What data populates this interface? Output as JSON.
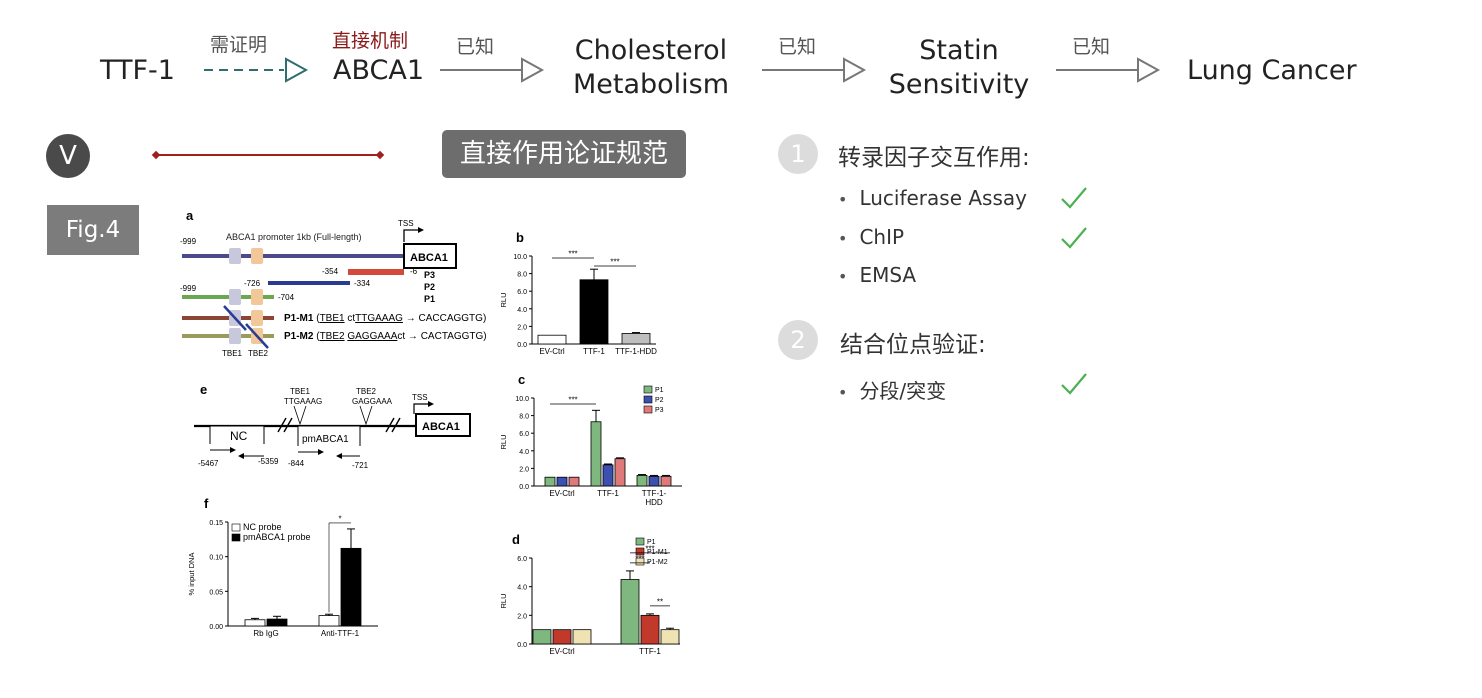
{
  "flow": {
    "nodes": {
      "ttf1": "TTF-1",
      "abca1": "ABCA1",
      "chol_l1": "Cholesterol",
      "chol_l2": "Metabolism",
      "statin_l1": "Statin",
      "statin_l2": "Sensitivity",
      "lung": "Lung Cancer"
    },
    "labels": {
      "to_prove": "需证明",
      "direct_mech": "直接机制",
      "known1": "已知",
      "known2": "已知",
      "known3": "已知"
    }
  },
  "section": {
    "roman": "V",
    "title": "直接作用论证规范",
    "fig_label": "Fig.4"
  },
  "checklist": {
    "group1": {
      "num": "1",
      "heading": "转录因子交互作用:",
      "items": [
        {
          "label": "Luciferase Assay",
          "checked": true
        },
        {
          "label": "ChIP",
          "checked": true
        },
        {
          "label": "EMSA",
          "checked": false
        }
      ]
    },
    "group2": {
      "num": "2",
      "heading": "结合位点验证:",
      "items": [
        {
          "label": "分段/突变",
          "checked": true
        }
      ]
    }
  },
  "figure": {
    "panel_a": {
      "letter": "a",
      "tss": "TSS",
      "promoter_label": "ABCA1 promoter 1kb (Full-length)",
      "gene": "ABCA1",
      "m999a": "-999",
      "m999b": "-999",
      "m354": "-354",
      "m6": "-6",
      "m726": "-726",
      "m334": "-334",
      "m704": "-704",
      "p3": "P3",
      "p2": "P2",
      "p1": "P1",
      "m1_name": "P1-M1",
      "m1_tbe": "TBE1",
      "m1_pre": " ct",
      "m1_seq": "TTGAAAG",
      "m1_post": " → CACCAGGTG)",
      "m2_name": "P1-M2",
      "m2_tbe": "TBE2",
      "m2_seq": "GAGGAAA",
      "m2_post": "ct → CACTAGGTG)",
      "tbe1": "TBE1",
      "tbe2": "TBE2"
    },
    "panel_e": {
      "letter": "e",
      "tbe1": "TBE1",
      "tbe1_seq": "TTGAAAG",
      "tbe2": "TBE2",
      "tbe2_seq": "GAGGAAA",
      "tss": "TSS",
      "gene": "ABCA1",
      "nc": "NC",
      "pm": "pmABCA1",
      "m5467": "-5467",
      "m5359": "-5359",
      "m844": "-844",
      "m721": "-721"
    }
  },
  "chart_data": [
    {
      "id": "b",
      "type": "bar",
      "title": "b",
      "ylabel": "RLU",
      "xlabel": "",
      "ylim": [
        0,
        10
      ],
      "yticks": [
        "0.0",
        "2.0",
        "4.0",
        "6.0",
        "8.0",
        "10.0"
      ],
      "categories": [
        "EV-Ctrl",
        "TTF-1",
        "TTF-1-HDD"
      ],
      "values": [
        1.0,
        7.3,
        1.2
      ],
      "errors": [
        0,
        1.2,
        0.1
      ],
      "colors": [
        "#ffffff",
        "#000000",
        "#bfbfbf"
      ],
      "significance": [
        {
          "from": 0,
          "to": 1,
          "label": "***"
        },
        {
          "from": 1,
          "to": 2,
          "label": "***"
        }
      ]
    },
    {
      "id": "c",
      "type": "bar",
      "title": "c",
      "ylabel": "RLU",
      "xlabel": "",
      "ylim": [
        0,
        10
      ],
      "yticks": [
        "0.0",
        "2.0",
        "4.0",
        "6.0",
        "8.0",
        "10.0"
      ],
      "categories": [
        "EV-Ctrl",
        "TTF-1",
        "TTF-1-\nHDD"
      ],
      "series": [
        {
          "name": "P1",
          "values": [
            1.0,
            7.3,
            1.2
          ],
          "errors": [
            0,
            1.3,
            0.1
          ],
          "color": "#7fb87f"
        },
        {
          "name": "P2",
          "values": [
            1.0,
            2.4,
            1.1
          ],
          "errors": [
            0,
            0.1,
            0.1
          ],
          "color": "#3d4fb0"
        },
        {
          "name": "P3",
          "values": [
            1.0,
            3.1,
            1.1
          ],
          "errors": [
            0,
            0.1,
            0.1
          ],
          "color": "#e07a7a"
        }
      ],
      "significance": [
        {
          "from": 0,
          "to": 1,
          "label": "***"
        }
      ],
      "legend": "top-right"
    },
    {
      "id": "d",
      "type": "bar",
      "title": "d",
      "ylabel": "RLU",
      "xlabel": "",
      "ylim": [
        0,
        6
      ],
      "yticks": [
        "0.0",
        "2.0",
        "4.0",
        "6.0"
      ],
      "categories": [
        "EV-Ctrl",
        "TTF-1"
      ],
      "series": [
        {
          "name": "P1",
          "values": [
            1.0,
            4.5
          ],
          "errors": [
            0,
            0.6
          ],
          "color": "#7fb87f"
        },
        {
          "name": "P1-M1",
          "values": [
            1.0,
            2.0
          ],
          "errors": [
            0,
            0.1
          ],
          "color": "#c0392b"
        },
        {
          "name": "P1-M2",
          "values": [
            1.0,
            1.0
          ],
          "errors": [
            0,
            0.1
          ],
          "color": "#efe2b3"
        }
      ],
      "significance": [
        {
          "label": "***"
        },
        {
          "label": "***"
        },
        {
          "label": "**"
        }
      ],
      "legend": "top-right"
    },
    {
      "id": "f",
      "type": "bar",
      "title": "f",
      "ylabel": "% input DNA",
      "xlabel": "",
      "ylim": [
        0,
        0.15
      ],
      "yticks": [
        "0.00",
        "0.05",
        "0.10",
        "0.15"
      ],
      "categories": [
        "Rb IgG",
        "Anti-TTF-1"
      ],
      "series": [
        {
          "name": "NC probe",
          "values": [
            0.009,
            0.015
          ],
          "errors": [
            0.002,
            0.002
          ],
          "color": "#ffffff"
        },
        {
          "name": "pmABCA1 probe",
          "values": [
            0.01,
            0.112
          ],
          "errors": [
            0.004,
            0.028
          ],
          "color": "#000000"
        }
      ],
      "significance": [
        {
          "label": "*"
        }
      ],
      "legend": "top-left"
    }
  ]
}
